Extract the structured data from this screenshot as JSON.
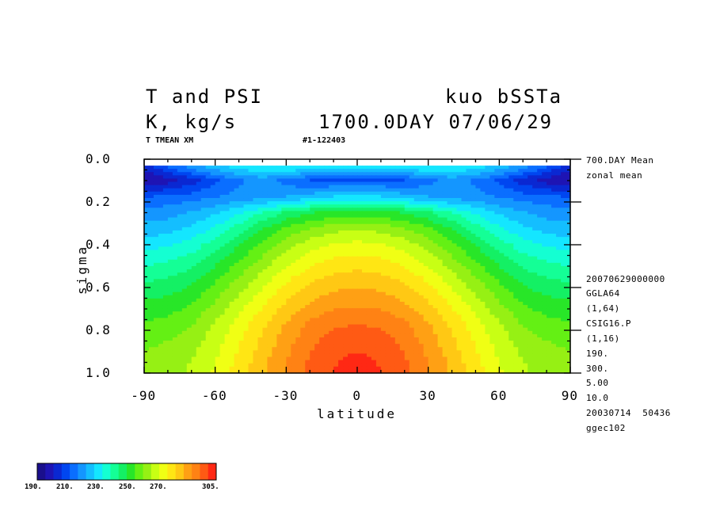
{
  "header": {
    "title_left": "T and PSI",
    "title_right": "kuo bSSTa",
    "units": "K, kg/s",
    "time": "1700.0DAY 07/06/29",
    "var_label": "T TMEAN XM",
    "range_label": "#1-122403"
  },
  "side_info": [
    "700.DAY Mean",
    "zonal mean",
    "20070629000000",
    "GGLA64",
    "(1,64)",
    "CSIG16.P",
    "(1,16)",
    "190.",
    "300.",
    "5.00",
    "10.0",
    "20030714  50436",
    "ggec102"
  ],
  "colorbar": {
    "labels": [
      "190.",
      "210.",
      "230.",
      "250.",
      "270.",
      "305."
    ],
    "colors": [
      "#1a0f8c",
      "#1e14b4",
      "#0a28d2",
      "#0046f0",
      "#0a6eff",
      "#1496ff",
      "#14beff",
      "#14e6ff",
      "#14ffd2",
      "#14ff96",
      "#14f064",
      "#28e628",
      "#64f014",
      "#96f014",
      "#c8ff14",
      "#f0ff14",
      "#ffe614",
      "#ffc814",
      "#ffa014",
      "#ff8214",
      "#ff5a14",
      "#ff2814"
    ]
  },
  "chart_data": {
    "type": "heatmap",
    "title": "T and PSI",
    "xlabel": "latitude",
    "ylabel": "sigma",
    "xlim": [
      -90,
      90
    ],
    "ylim": [
      1.0,
      0.0
    ],
    "x_ticks": [
      -90,
      -60,
      -30,
      0,
      30,
      60,
      90
    ],
    "y_ticks": [
      0.0,
      0.2,
      0.4,
      0.6,
      0.8,
      1.0
    ],
    "x_tick_labels": [
      "-90",
      "-60",
      "-30",
      "0",
      "30",
      "60",
      "90"
    ],
    "y_tick_labels": [
      "0.0",
      "0.2",
      "0.4",
      "0.6",
      "0.8",
      "1.0"
    ],
    "color_range": [
      190,
      305
    ],
    "latitudes": [
      -87.5,
      -80,
      -70,
      -60,
      -50,
      -40,
      -30,
      -20,
      -10,
      0,
      10,
      20,
      30,
      40,
      50,
      60,
      70,
      80,
      87.5
    ],
    "sigma": [
      0.03,
      0.1,
      0.18,
      0.25,
      0.33,
      0.4,
      0.48,
      0.55,
      0.63,
      0.7,
      0.78,
      0.85,
      0.93,
      0.99
    ],
    "values": [
      [
        205,
        212,
        220,
        226,
        230,
        233,
        234,
        233,
        232,
        232,
        232,
        233,
        234,
        233,
        230,
        226,
        220,
        212,
        205
      ],
      [
        195,
        198,
        203,
        210,
        215,
        219,
        214,
        210,
        210,
        210,
        210,
        210,
        214,
        219,
        215,
        210,
        203,
        198,
        195
      ],
      [
        212,
        213,
        214,
        216,
        218,
        220,
        222,
        225,
        228,
        229,
        228,
        225,
        222,
        220,
        218,
        216,
        214,
        213,
        212
      ],
      [
        218,
        219,
        222,
        226,
        231,
        237,
        243,
        247,
        249,
        250,
        249,
        247,
        243,
        237,
        231,
        226,
        222,
        219,
        218
      ],
      [
        224,
        225,
        228,
        233,
        240,
        248,
        254,
        259,
        262,
        263,
        262,
        259,
        254,
        248,
        240,
        233,
        228,
        225,
        224
      ],
      [
        230,
        231,
        234,
        240,
        247,
        254,
        261,
        266,
        269,
        270,
        269,
        266,
        261,
        254,
        247,
        240,
        234,
        231,
        230
      ],
      [
        236,
        237,
        240,
        246,
        253,
        260,
        267,
        272,
        275,
        276,
        275,
        272,
        267,
        260,
        253,
        246,
        240,
        237,
        236
      ],
      [
        241,
        242,
        245,
        251,
        258,
        265,
        272,
        277,
        280,
        281,
        280,
        277,
        272,
        265,
        258,
        251,
        245,
        242,
        241
      ],
      [
        246,
        247,
        250,
        256,
        263,
        270,
        277,
        282,
        285,
        286,
        285,
        282,
        277,
        270,
        263,
        256,
        250,
        247,
        246
      ],
      [
        250,
        251,
        254,
        260,
        267,
        274,
        281,
        286,
        289,
        290,
        289,
        286,
        281,
        274,
        267,
        260,
        254,
        251,
        250
      ],
      [
        254,
        255,
        258,
        264,
        271,
        278,
        285,
        291,
        294,
        295,
        294,
        291,
        285,
        278,
        271,
        264,
        258,
        255,
        254
      ],
      [
        257,
        258,
        261,
        266,
        273,
        280,
        287,
        293,
        297,
        298,
        297,
        293,
        287,
        280,
        273,
        266,
        261,
        258,
        257
      ],
      [
        259,
        260,
        263,
        268,
        275,
        282,
        289,
        295,
        299,
        301,
        299,
        295,
        289,
        282,
        275,
        268,
        263,
        260,
        259
      ],
      [
        260,
        261,
        264,
        269,
        276,
        283,
        290,
        296,
        300,
        302,
        300,
        296,
        290,
        283,
        276,
        269,
        264,
        261,
        260
      ]
    ]
  }
}
